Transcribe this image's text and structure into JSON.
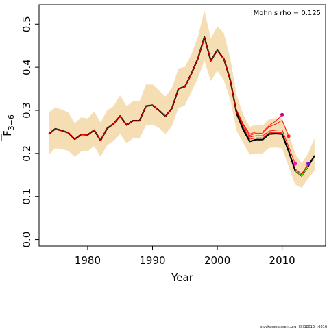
{
  "chart_data": {
    "type": "line",
    "title": "",
    "xlabel": "Year",
    "ylabel": "F̄3−6",
    "ylabel_main": "F",
    "ylabel_sub": "3−6",
    "xlim": [
      1972.5,
      2016.7
    ],
    "ylim": [
      -0.015,
      0.545
    ],
    "xticks": [
      1980,
      1990,
      2000,
      2010
    ],
    "xtick_labels": [
      "1980",
      "1990",
      "2000",
      "2010"
    ],
    "yticks": [
      0.0,
      0.1,
      0.2,
      0.3,
      0.4,
      0.5
    ],
    "ytick_labels": [
      "0.0",
      "0.1",
      "0.2",
      "0.3",
      "0.4",
      "0.5"
    ],
    "grid": false,
    "annotation": "Mohn's rho = 0.125",
    "credit": "stockassessment.org, CHB2016, r6816",
    "colors": {
      "band": "#f5deb3",
      "main_line": "#000000",
      "peel_line": "#ff0000",
      "last_segment": "#7cfc00",
      "point_2010": "#b5089e",
      "point_2011": "#ff1a1a",
      "point_2012": "#ff0aab",
      "point_2014": "#8a10e0"
    },
    "years": [
      1974,
      1975,
      1976,
      1977,
      1978,
      1979,
      1980,
      1981,
      1982,
      1983,
      1984,
      1985,
      1986,
      1987,
      1988,
      1989,
      1990,
      1991,
      1992,
      1993,
      1994,
      1995,
      1996,
      1997,
      1998,
      1999,
      2000,
      2001,
      2002,
      2003,
      2004,
      2005,
      2006,
      2007,
      2008,
      2009,
      2010,
      2011,
      2012,
      2013,
      2014,
      2015
    ],
    "series": [
      {
        "values": [
          0.245,
          0.257,
          0.253,
          0.248,
          0.233,
          0.244,
          0.243,
          0.254,
          0.23,
          0.258,
          0.269,
          0.287,
          0.266,
          0.276,
          0.276,
          0.31,
          0.312,
          0.3,
          0.286,
          0.305,
          0.35,
          0.355,
          0.385,
          0.42,
          0.47,
          0.415,
          0.44,
          0.42,
          0.37,
          0.292,
          0.255,
          0.228,
          0.232,
          0.232,
          0.245,
          0.246,
          0.245,
          0.205,
          0.16,
          0.148,
          0.17,
          0.195
        ]
      }
    ],
    "band_upper": [
      0.295,
      0.307,
      0.302,
      0.295,
      0.27,
      0.284,
      0.281,
      0.297,
      0.272,
      0.3,
      0.31,
      0.335,
      0.31,
      0.321,
      0.321,
      0.36,
      0.36,
      0.346,
      0.332,
      0.352,
      0.397,
      0.401,
      0.43,
      0.47,
      0.532,
      0.467,
      0.495,
      0.48,
      0.42,
      0.335,
      0.29,
      0.262,
      0.266,
      0.265,
      0.28,
      0.282,
      0.282,
      0.245,
      0.2,
      0.177,
      0.2,
      0.235
    ],
    "band_lower": [
      0.197,
      0.212,
      0.21,
      0.206,
      0.192,
      0.205,
      0.205,
      0.217,
      0.192,
      0.219,
      0.229,
      0.245,
      0.224,
      0.235,
      0.235,
      0.265,
      0.267,
      0.259,
      0.245,
      0.264,
      0.305,
      0.312,
      0.342,
      0.375,
      0.415,
      0.368,
      0.392,
      0.37,
      0.324,
      0.252,
      0.224,
      0.197,
      0.2,
      0.2,
      0.213,
      0.214,
      0.212,
      0.17,
      0.128,
      0.12,
      0.142,
      0.16
    ],
    "peels": [
      {
        "name": "peel-2014",
        "years": [
          2003,
          2004,
          2005,
          2006,
          2007,
          2008,
          2009,
          2010,
          2011,
          2012,
          2013,
          2014
        ],
        "values": [
          0.294,
          0.258,
          0.233,
          0.236,
          0.236,
          0.248,
          0.249,
          0.248,
          0.209,
          0.164,
          0.152,
          0.176
        ]
      },
      {
        "name": "peel-2012",
        "years": [
          2003,
          2004,
          2005,
          2006,
          2007,
          2008,
          2009,
          2010,
          2011,
          2012
        ],
        "values": [
          0.296,
          0.261,
          0.238,
          0.241,
          0.241,
          0.252,
          0.254,
          0.255,
          0.216,
          0.176
        ]
      },
      {
        "name": "peel-2011",
        "years": [
          2003,
          2004,
          2005,
          2006,
          2007,
          2008,
          2009,
          2010,
          2011
        ],
        "values": [
          0.298,
          0.265,
          0.242,
          0.247,
          0.247,
          0.262,
          0.268,
          0.277,
          0.24
        ]
      },
      {
        "name": "peel-2010",
        "years": [
          2003,
          2004,
          2005,
          2006,
          2007,
          2008,
          2009,
          2010
        ],
        "values": [
          0.3,
          0.268,
          0.245,
          0.25,
          0.25,
          0.265,
          0.275,
          0.29
        ]
      }
    ],
    "last_segment": {
      "years": [
        2012,
        2013,
        2014
      ],
      "values": [
        0.16,
        0.148,
        0.17
      ]
    },
    "points": [
      {
        "x": 2010,
        "y": 0.29,
        "color_key": "point_2010"
      },
      {
        "x": 2011,
        "y": 0.24,
        "color_key": "point_2011"
      },
      {
        "x": 2012,
        "y": 0.176,
        "color_key": "point_2012"
      },
      {
        "x": 2014,
        "y": 0.176,
        "color_key": "point_2014"
      }
    ]
  }
}
